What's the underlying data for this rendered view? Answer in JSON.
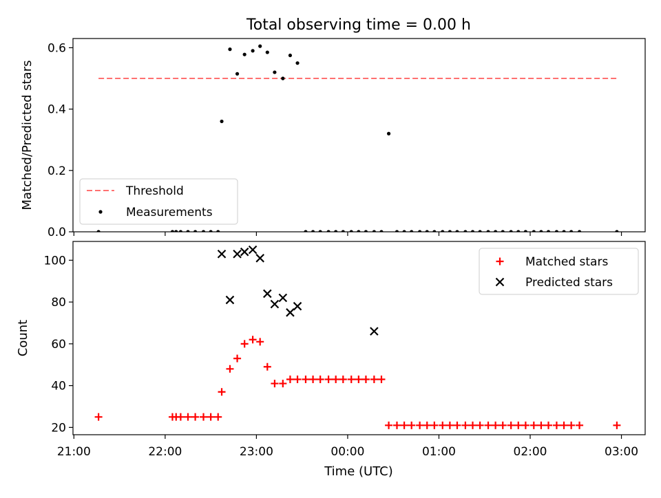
{
  "figure": {
    "title": "Total observing time = 0.00 h",
    "x_axis_label": "Time (UTC)",
    "x_tick_labels": [
      "21:00",
      "22:00",
      "23:00",
      "00:00",
      "01:00",
      "02:00",
      "03:00"
    ]
  },
  "chart_data": [
    {
      "type": "scatter",
      "title": "Total observing time = 0.00 h",
      "xlabel": "",
      "ylabel": "Matched/Predicted stars",
      "ylim": [
        0,
        0.63
      ],
      "yticks": [
        0.0,
        0.2,
        0.4,
        0.6
      ],
      "ytick_labels": [
        "0.0",
        "0.2",
        "0.4",
        "0.6"
      ],
      "x_units": "hours since 21:00 UTC",
      "xlim": [
        -0.01,
        6.26
      ],
      "legend_position": "bottom-left",
      "threshold": {
        "name": "Threshold",
        "y": 0.5,
        "x_range": [
          0.27,
          5.95
        ],
        "color": "#ff7070"
      },
      "series": [
        {
          "name": "Measurements",
          "color": "#000000",
          "x": [
            0.27,
            1.08,
            1.12,
            1.17,
            1.25,
            1.33,
            1.42,
            1.5,
            1.58,
            1.62,
            1.71,
            1.79,
            1.87,
            1.96,
            2.04,
            2.12,
            2.2,
            2.29,
            2.37,
            2.45,
            2.54,
            2.62,
            2.7,
            2.79,
            2.87,
            2.95,
            3.04,
            3.12,
            3.2,
            3.29,
            3.37,
            3.45,
            3.54,
            3.62,
            3.7,
            3.79,
            3.87,
            3.95,
            4.04,
            4.12,
            4.2,
            4.29,
            4.37,
            4.45,
            4.54,
            4.62,
            4.7,
            4.79,
            4.87,
            4.95,
            5.04,
            5.12,
            5.2,
            5.29,
            5.37,
            5.45,
            5.54,
            5.95
          ],
          "y": [
            0.0,
            0.0,
            0.0,
            0.0,
            0.0,
            0.0,
            0.0,
            0.0,
            0.0,
            0.36,
            0.595,
            0.515,
            0.578,
            0.59,
            0.605,
            0.585,
            0.52,
            0.5,
            0.575,
            0.55,
            0.0,
            0.0,
            0.0,
            0.0,
            0.0,
            0.0,
            0.0,
            0.0,
            0.0,
            0.0,
            0.0,
            0.32,
            0.0,
            0.0,
            0.0,
            0.0,
            0.0,
            0.0,
            0.0,
            0.0,
            0.0,
            0.0,
            0.0,
            0.0,
            0.0,
            0.0,
            0.0,
            0.0,
            0.0,
            0.0,
            0.0,
            0.0,
            0.0,
            0.0,
            0.0,
            0.0,
            0.0,
            0.0
          ]
        }
      ]
    },
    {
      "type": "scatter",
      "xlabel": "Time (UTC)",
      "ylabel": "Count",
      "ylim": [
        16.5,
        109
      ],
      "yticks": [
        20,
        40,
        60,
        80,
        100
      ],
      "ytick_labels": [
        "20",
        "40",
        "60",
        "80",
        "100"
      ],
      "x_units": "hours since 21:00 UTC",
      "xlim": [
        -0.01,
        6.26
      ],
      "xticks": [
        0,
        1,
        2,
        3,
        4,
        5,
        6
      ],
      "xtick_labels": [
        "21:00",
        "22:00",
        "23:00",
        "00:00",
        "01:00",
        "02:00",
        "03:00"
      ],
      "legend_position": "top-right",
      "series": [
        {
          "name": "Matched stars",
          "marker": "plus",
          "color": "#ff0000",
          "x": [
            0.27,
            1.08,
            1.12,
            1.17,
            1.25,
            1.33,
            1.42,
            1.5,
            1.58,
            1.62,
            1.71,
            1.79,
            1.87,
            1.96,
            2.04,
            2.12,
            2.2,
            2.29,
            2.37,
            2.45,
            2.54,
            2.62,
            2.7,
            2.79,
            2.87,
            2.95,
            3.04,
            3.12,
            3.2,
            3.29,
            3.37,
            3.45,
            3.54,
            3.62,
            3.7,
            3.79,
            3.87,
            3.95,
            4.04,
            4.12,
            4.2,
            4.29,
            4.37,
            4.45,
            4.54,
            4.62,
            4.7,
            4.79,
            4.87,
            4.95,
            5.04,
            5.12,
            5.2,
            5.29,
            5.37,
            5.45,
            5.54,
            5.95
          ],
          "y": [
            25,
            25,
            25,
            25,
            25,
            25,
            25,
            25,
            25,
            37,
            48,
            53,
            60,
            62,
            61,
            49,
            41,
            41,
            43,
            43,
            43,
            43,
            43,
            43,
            43,
            43,
            43,
            43,
            43,
            43,
            43,
            21,
            21,
            21,
            21,
            21,
            21,
            21,
            21,
            21,
            21,
            21,
            21,
            21,
            21,
            21,
            21,
            21,
            21,
            21,
            21,
            21,
            21,
            21,
            21,
            21,
            21,
            21
          ]
        },
        {
          "name": "Predicted stars",
          "marker": "x",
          "color": "#000000",
          "x": [
            1.62,
            1.71,
            1.79,
            1.87,
            1.96,
            2.04,
            2.12,
            2.2,
            2.29,
            2.37,
            2.45,
            3.29
          ],
          "y": [
            103,
            81,
            103,
            104,
            105,
            101,
            84,
            79,
            82,
            75,
            78,
            66
          ]
        }
      ]
    }
  ]
}
